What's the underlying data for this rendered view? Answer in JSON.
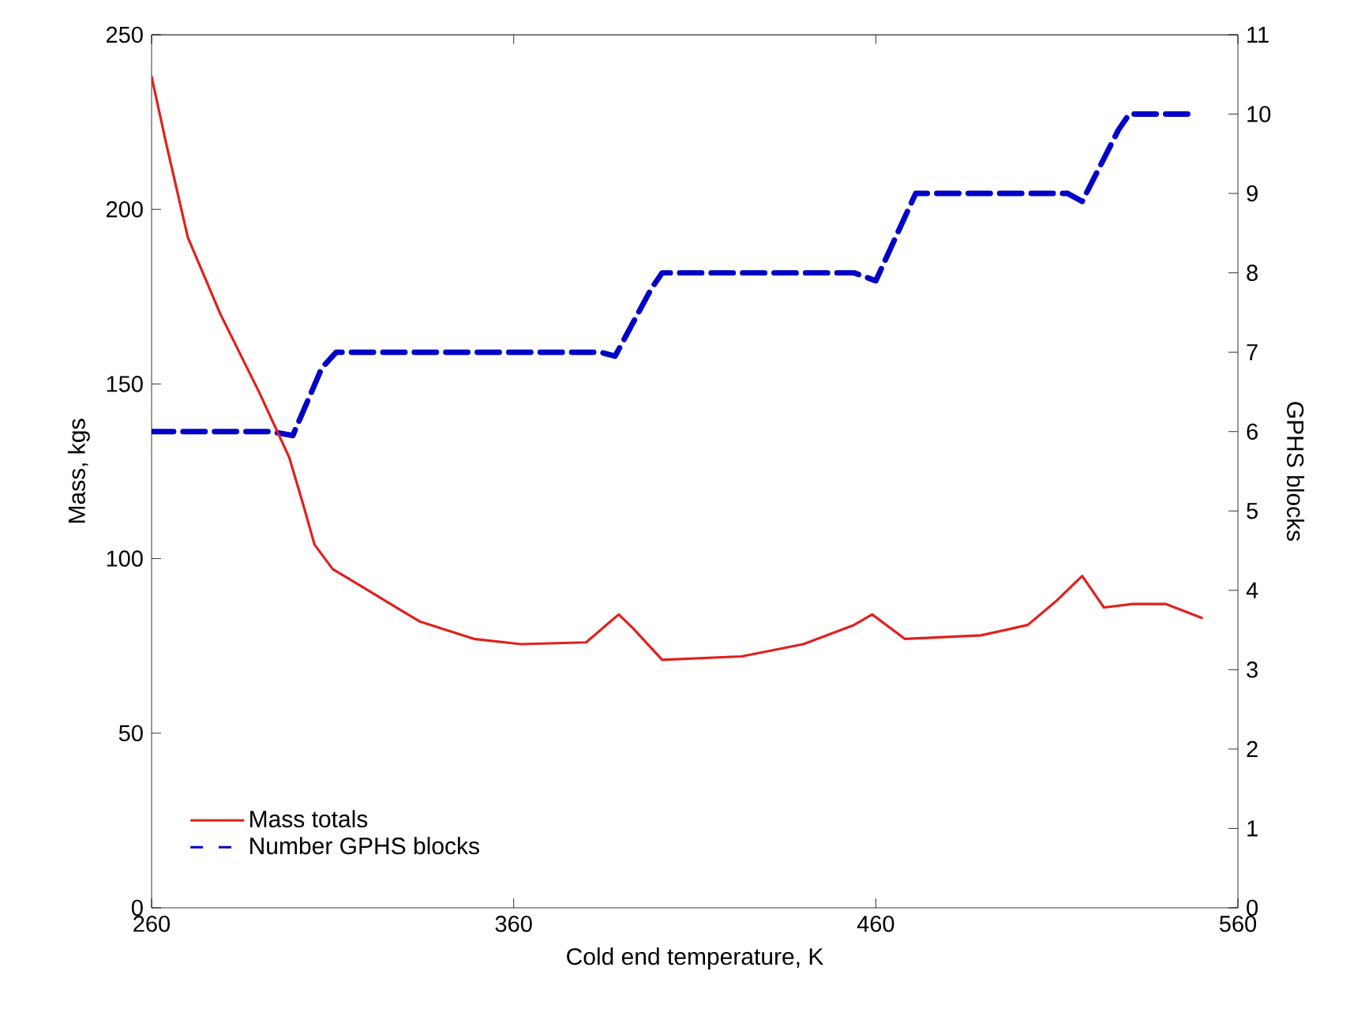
{
  "chart_data": {
    "type": "line",
    "xlabel": "Cold end temperature, K",
    "ylabel": "Mass, kgs",
    "y2label": "GPHS blocks",
    "xlim": [
      260,
      560
    ],
    "xticks": [
      260,
      360,
      460,
      560
    ],
    "ylim": [
      0,
      250
    ],
    "yticks": [
      0,
      50,
      100,
      150,
      200,
      250
    ],
    "y2lim": [
      0,
      11
    ],
    "y2ticks": [
      0,
      1,
      2,
      3,
      4,
      5,
      6,
      7,
      8,
      9,
      10,
      11
    ],
    "grid": false,
    "legend": "bottom left",
    "series": [
      {
        "name": "Mass totals",
        "color": "#e0201c",
        "line_style": "solid",
        "x": [
          260,
          264,
          270,
          279,
          290,
          298,
          302,
          305,
          310,
          318,
          334,
          349,
          362,
          380,
          389,
          393,
          401,
          423,
          440,
          454,
          459,
          468,
          489,
          502,
          510,
          517,
          523,
          531,
          540,
          550
        ],
        "values": [
          238,
          219,
          192,
          170,
          147,
          129,
          115,
          104,
          97,
          92,
          82,
          77,
          75.5,
          76,
          84,
          80,
          71,
          72,
          75.5,
          81,
          84,
          77,
          78,
          81,
          88,
          95,
          86,
          87,
          87,
          83
        ]
      },
      {
        "name": "Number GPHS blocks",
        "color": "#0000c8",
        "axis": "y2",
        "line_style": "dashed",
        "x": [
          260,
          293,
          299,
          307,
          311,
          384,
          388,
          398,
          401,
          454,
          460,
          468,
          471,
          513,
          517,
          527,
          530,
          548
        ],
        "values": [
          6,
          6,
          5.95,
          6.8,
          7,
          7,
          6.95,
          7.8,
          8,
          8,
          7.9,
          8.7,
          9,
          9,
          8.9,
          9.8,
          10,
          10
        ]
      }
    ]
  }
}
